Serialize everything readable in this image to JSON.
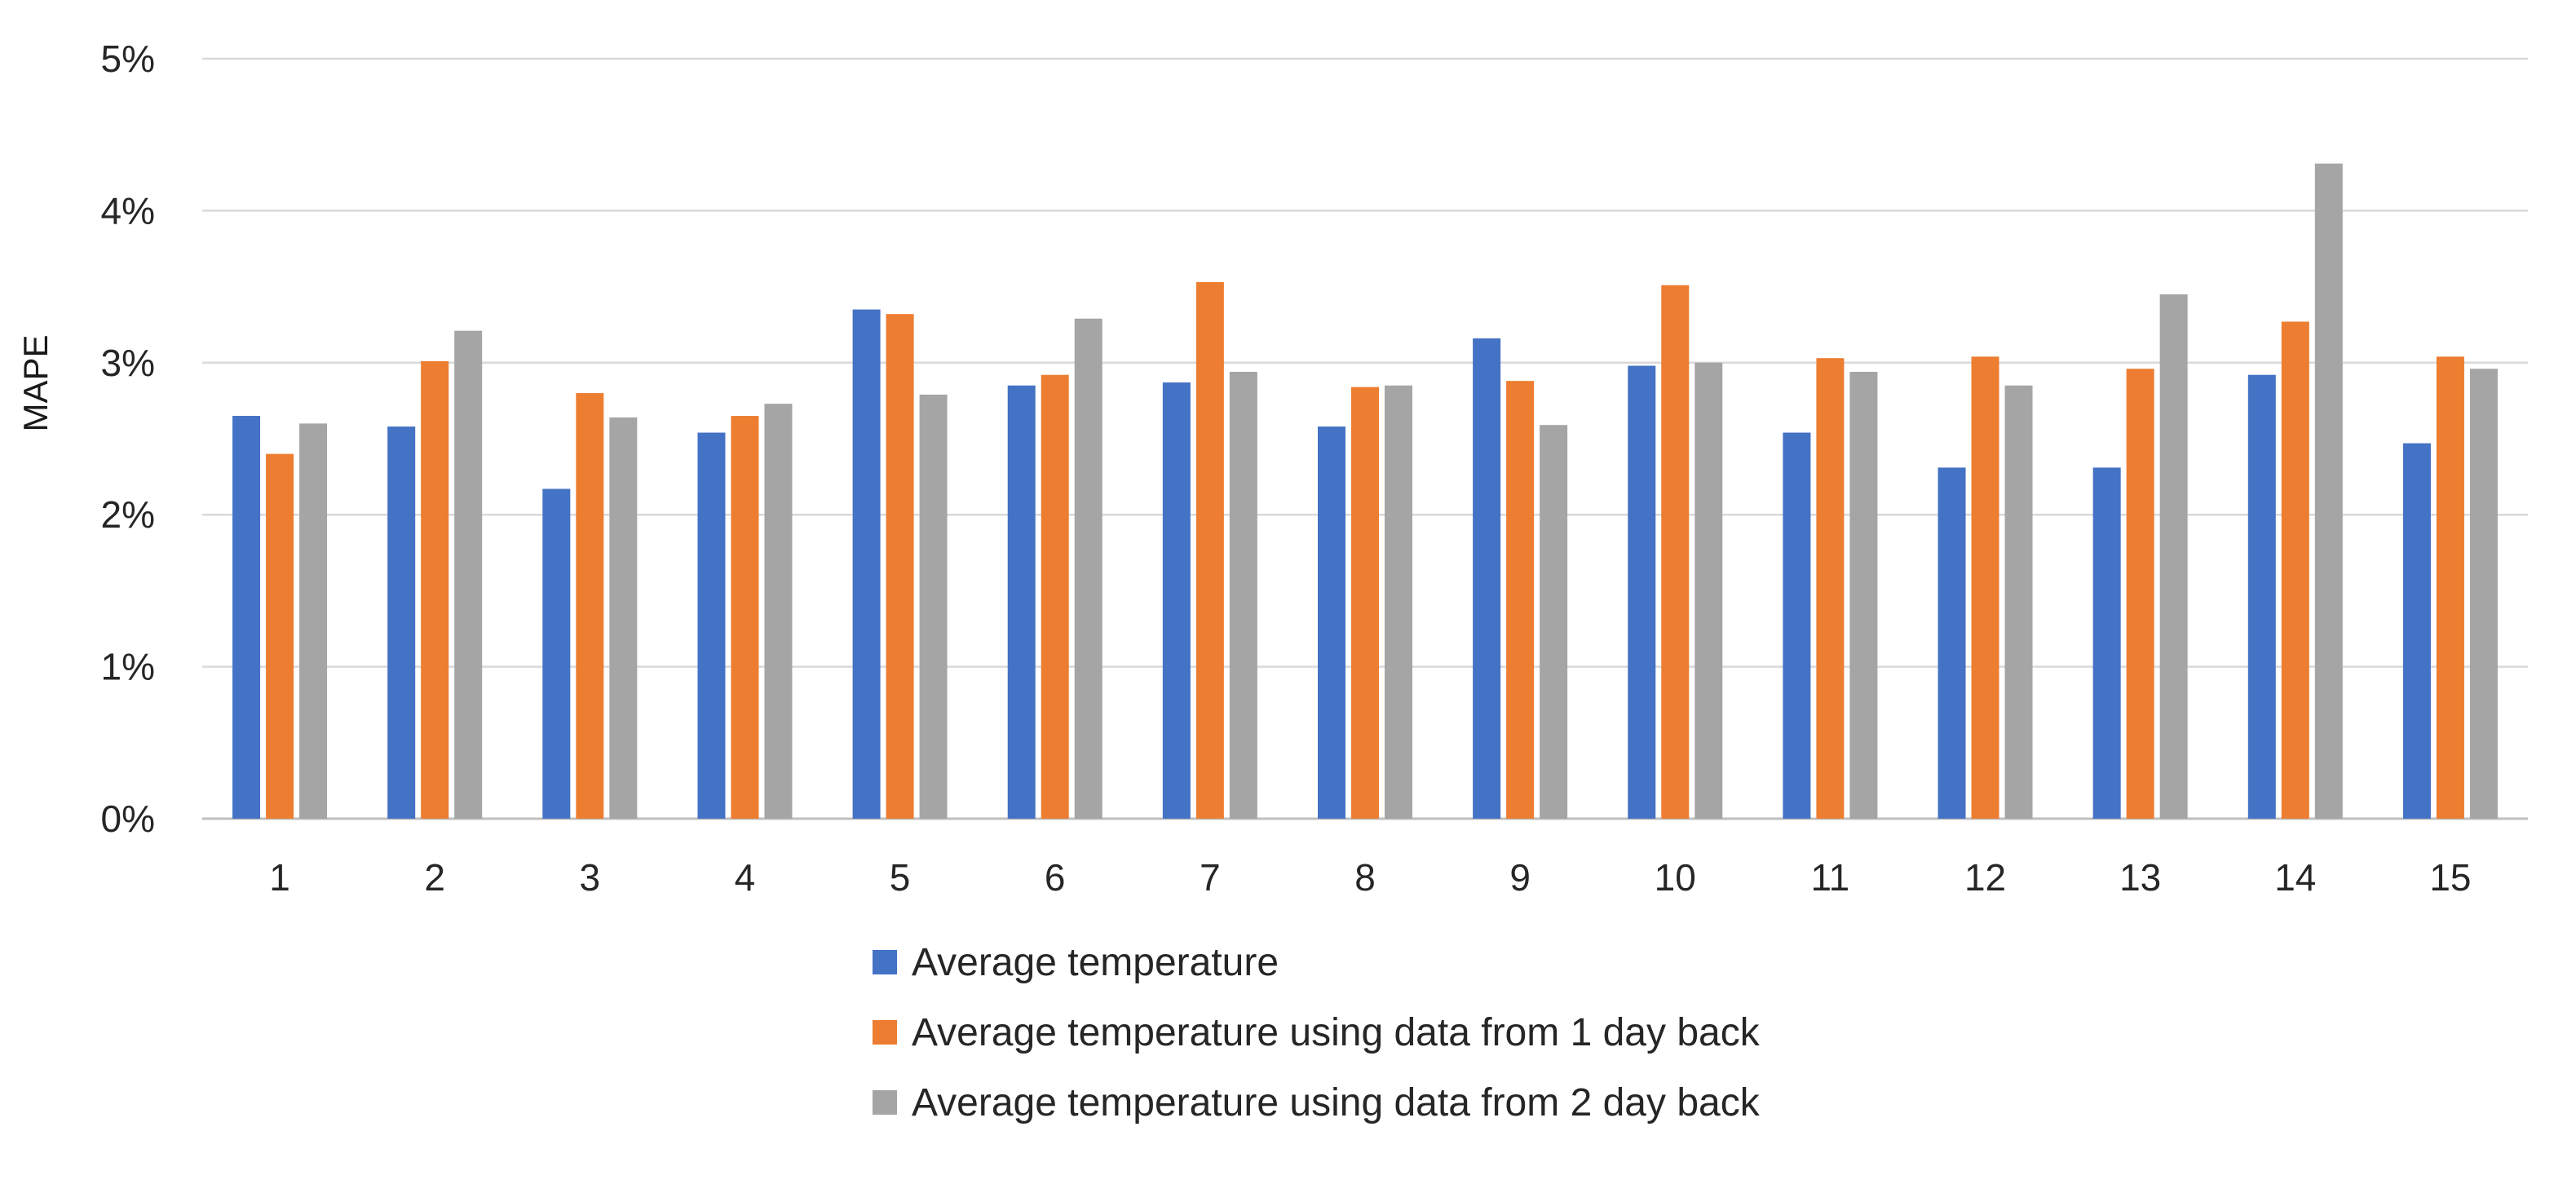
{
  "chart_data": {
    "type": "bar",
    "title": "",
    "xlabel": "",
    "ylabel": "MAPE",
    "ylim": [
      0,
      5
    ],
    "y_ticks": [
      "0%",
      "1%",
      "2%",
      "3%",
      "4%",
      "5%"
    ],
    "grid": true,
    "legend_position": "bottom",
    "categories": [
      "1",
      "2",
      "3",
      "4",
      "5",
      "6",
      "7",
      "8",
      "9",
      "10",
      "11",
      "12",
      "13",
      "14",
      "15"
    ],
    "series": [
      {
        "name": "Average temperature",
        "color": "#4472c4",
        "values": [
          2.65,
          2.58,
          2.17,
          2.54,
          3.35,
          2.85,
          2.87,
          2.58,
          3.16,
          2.98,
          2.54,
          2.31,
          2.31,
          2.92,
          2.47
        ]
      },
      {
        "name": "Average temperature using data from 1 day back",
        "color": "#ed7d31",
        "values": [
          2.4,
          3.01,
          2.8,
          2.65,
          3.32,
          2.92,
          3.53,
          2.84,
          2.88,
          3.51,
          3.03,
          3.04,
          2.96,
          3.27,
          3.04
        ]
      },
      {
        "name": "Average temperature using data from 2 day back",
        "color": "#a5a5a5",
        "values": [
          2.6,
          3.21,
          2.64,
          2.73,
          2.79,
          3.29,
          2.94,
          2.85,
          2.59,
          3.0,
          2.94,
          2.85,
          3.45,
          4.31,
          2.96
        ]
      }
    ]
  }
}
